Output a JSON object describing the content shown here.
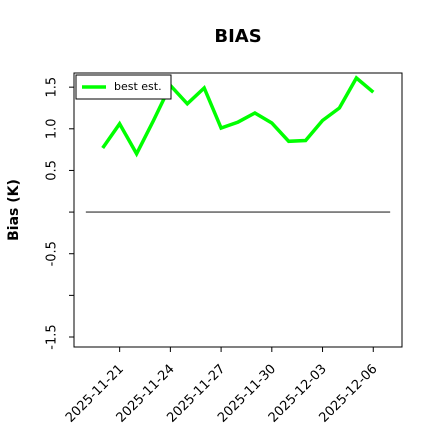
{
  "chart_data": {
    "type": "line",
    "title": "BIAS",
    "y_label": "Bias (K)",
    "x": [
      "2025-11-20",
      "2025-11-21",
      "2025-11-22",
      "2025-11-23",
      "2025-11-24",
      "2025-11-25",
      "2025-11-26",
      "2025-11-27",
      "2025-11-28",
      "2025-11-29",
      "2025-11-30",
      "2025-12-01",
      "2025-12-02",
      "2025-12-03",
      "2025-12-04",
      "2025-12-05",
      "2025-12-06"
    ],
    "series": [
      {
        "name": "best est.",
        "color": "#00ff00",
        "values": [
          0.77,
          1.06,
          0.7,
          1.1,
          1.52,
          1.3,
          1.49,
          1.01,
          1.08,
          1.19,
          1.07,
          0.85,
          0.86,
          1.1,
          1.25,
          1.61,
          1.44
        ]
      }
    ],
    "xlim": [
      "2025-11-19",
      "2025-12-07"
    ],
    "xticks": [
      "2025-11-21",
      "2025-11-24",
      "2025-11-27",
      "2025-11-30",
      "2025-12-03",
      "2025-12-06"
    ],
    "ylim": [
      -1.62,
      1.67
    ],
    "yticks": [
      -1.5,
      -0.5,
      0.5,
      {
        "value": 1,
        "label": "1.0"
      },
      1.5
    ],
    "minor_yticks": [
      -1,
      0
    ],
    "hline": 0,
    "hline_color": "#555555",
    "legend": "upper left"
  }
}
